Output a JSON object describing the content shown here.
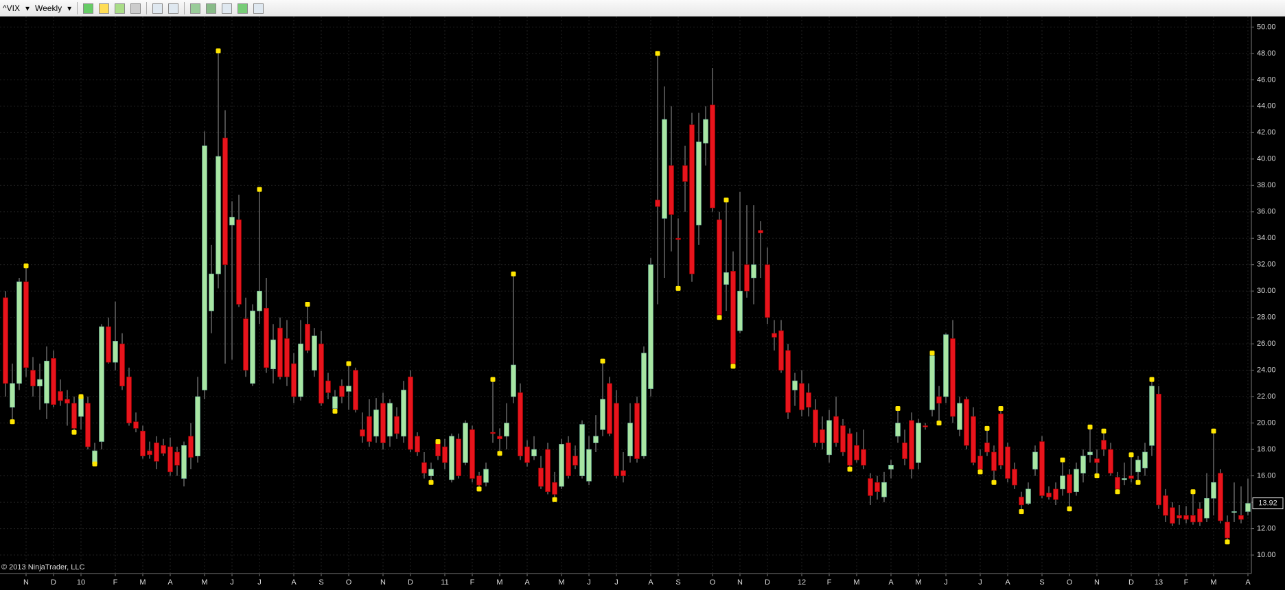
{
  "toolbar": {
    "symbol": "^VIX",
    "interval": "Weekly"
  },
  "chart_data": {
    "type": "candlestick",
    "copyright": "© 2013 NinjaTrader, LLC",
    "categories": [
      null,
      null,
      null,
      "N",
      null,
      null,
      null,
      "D",
      null,
      null,
      null,
      "10",
      null,
      null,
      null,
      null,
      "F",
      null,
      null,
      null,
      "M",
      null,
      null,
      null,
      "A",
      null,
      null,
      null,
      null,
      "M",
      null,
      null,
      null,
      "J",
      null,
      null,
      null,
      "J",
      null,
      null,
      null,
      null,
      "A",
      null,
      null,
      null,
      "S",
      null,
      null,
      null,
      "O",
      null,
      null,
      null,
      null,
      "N",
      null,
      null,
      null,
      "D",
      null,
      null,
      null,
      null,
      "11",
      null,
      null,
      null,
      "F",
      null,
      null,
      null,
      "M",
      null,
      null,
      null,
      "A",
      null,
      null,
      null,
      null,
      "M",
      null,
      null,
      null,
      "J",
      null,
      null,
      null,
      "J",
      null,
      null,
      null,
      null,
      "A",
      null,
      null,
      null,
      "S",
      null,
      null,
      null,
      null,
      "O",
      null,
      null,
      null,
      "N",
      null,
      null,
      null,
      "D",
      null,
      null,
      null,
      null,
      "12",
      null,
      null,
      null,
      "F",
      null,
      null,
      null,
      "M",
      null,
      null,
      null,
      null,
      "A",
      null,
      null,
      null,
      "M",
      null,
      null,
      null,
      "J",
      null,
      null,
      null,
      null,
      "J",
      null,
      null,
      null,
      "A",
      null,
      null,
      null,
      null,
      "S",
      null,
      null,
      null,
      "O",
      null,
      null,
      null,
      "N",
      null,
      null,
      null,
      null,
      "D",
      null,
      null,
      null,
      "13",
      null,
      null,
      null,
      "F",
      null,
      null,
      null,
      "M",
      null,
      null,
      null,
      null,
      "A"
    ],
    "open": [
      29.5,
      21.2,
      23.0,
      30.7,
      24.0,
      22.8,
      21.5,
      24.9,
      22.4,
      21.8,
      21.5,
      20.5,
      21.5,
      16.9,
      18.6,
      27.3,
      24.6,
      26.0,
      23.5,
      20.1,
      19.4,
      17.9,
      18.5,
      18.3,
      18.2,
      17.8,
      15.8,
      19.0,
      17.5,
      22.5,
      28.5,
      31.3,
      41.6,
      35.0,
      35.4,
      27.9,
      23.0,
      28.5,
      28.7,
      24.1,
      27.2,
      26.4,
      24.5,
      22.0,
      27.5,
      24.0,
      26.0,
      23.2,
      21.1,
      22.8,
      22.4,
      24.0,
      19.5,
      20.5,
      19.0,
      21.5,
      19.0,
      20.5,
      19.0,
      23.5,
      19.0,
      17.0,
      16.0,
      18.5,
      18.2,
      15.7,
      18.8,
      17.0,
      19.5,
      16.0,
      15.5,
      19.3,
      19.0,
      19.0,
      22.0,
      22.3,
      18.2,
      17.5,
      16.6,
      18.0,
      15.5,
      15.2,
      18.5,
      17.5,
      16.0,
      15.6,
      18.5,
      19.5,
      23.0,
      21.5,
      16.4,
      17.5,
      21.5,
      17.5,
      22.6,
      36.9,
      35.5,
      39.5,
      34.0,
      39.5,
      42.6,
      35.0,
      41.2,
      44.1,
      35.4,
      30.5,
      31.5,
      27.0,
      32.0,
      31.0,
      34.6,
      32.0,
      26.8,
      27.0,
      25.5,
      22.5,
      23.0,
      22.3,
      21.0,
      19.5,
      17.6,
      20.5,
      19.8,
      19.2,
      18.3,
      18.0,
      15.8,
      15.5,
      14.4,
      16.5,
      19.0,
      18.5,
      20.2,
      17.0,
      19.8,
      21.0,
      22.0,
      22.0,
      26.4,
      19.5,
      21.8,
      20.5,
      17.5,
      18.5,
      17.8,
      20.7,
      18.2,
      16.5,
      14.4,
      13.9,
      16.5,
      18.6,
      14.7,
      15.0,
      15.0,
      16.1,
      14.8,
      16.2,
      17.6,
      17.3,
      18.7,
      18.0,
      15.9,
      15.7,
      16.0,
      16.3,
      16.6,
      18.3,
      22.2,
      14.5,
      13.6,
      13.0,
      13.0,
      13.0,
      13.5,
      12.8,
      14.3,
      16.2,
      12.5,
      13.3,
      13.0,
      13.3
    ],
    "high": [
      30.0,
      24.5,
      31.0,
      31.9,
      25.0,
      24.5,
      25.8,
      25.5,
      23.3,
      22.5,
      22.0,
      22.2,
      22.0,
      18.5,
      27.5,
      28.0,
      29.2,
      26.8,
      24.2,
      20.8,
      19.8,
      18.6,
      19.0,
      18.8,
      18.9,
      18.2,
      18.6,
      20.0,
      23.5,
      42.1,
      33.5,
      48.2,
      43.7,
      36.8,
      37.3,
      29.5,
      29.0,
      37.7,
      31.0,
      27.5,
      28.0,
      27.8,
      25.3,
      27.8,
      29.0,
      27.2,
      27.0,
      23.8,
      22.5,
      23.3,
      24.5,
      24.2,
      20.8,
      21.8,
      21.9,
      22.3,
      21.8,
      21.2,
      23.2,
      24.0,
      19.3,
      17.8,
      17.0,
      18.6,
      18.8,
      19.2,
      19.2,
      20.2,
      19.8,
      16.3,
      17.0,
      23.3,
      19.6,
      21.5,
      31.3,
      23.0,
      18.7,
      19.0,
      17.5,
      18.5,
      16.3,
      18.8,
      19.0,
      18.3,
      20.2,
      19.0,
      20.6,
      24.7,
      23.5,
      22.5,
      17.8,
      21.5,
      22.0,
      25.8,
      32.5,
      48.0,
      45.5,
      44.0,
      35.5,
      41.0,
      43.5,
      43.5,
      44.0,
      46.9,
      36.0,
      36.9,
      33.0,
      37.5,
      36.5,
      36.5,
      35.3,
      33.3,
      27.8,
      27.8,
      26.0,
      23.8,
      24.0,
      23.0,
      21.8,
      20.5,
      21.0,
      22.0,
      20.3,
      19.6,
      19.3,
      19.5,
      16.2,
      16.0,
      16.3,
      17.2,
      21.1,
      19.5,
      20.8,
      20.3,
      20.0,
      25.3,
      22.8,
      26.8,
      27.8,
      22.0,
      22.0,
      21.2,
      18.0,
      19.6,
      18.3,
      21.1,
      18.5,
      17.0,
      14.8,
      15.5,
      18.3,
      19.0,
      15.2,
      15.5,
      17.2,
      16.5,
      17.0,
      18.0,
      19.7,
      18.0,
      19.4,
      18.5,
      16.3,
      17.0,
      17.6,
      17.5,
      18.5,
      23.3,
      22.8,
      15.0,
      14.0,
      13.8,
      13.7,
      14.8,
      14.0,
      16.2,
      19.4,
      16.5,
      13.0,
      15.5,
      15.2,
      15.8
    ],
    "low": [
      22.0,
      20.1,
      22.5,
      23.5,
      22.0,
      21.0,
      20.3,
      21.2,
      21.3,
      19.8,
      19.3,
      19.5,
      18.0,
      16.9,
      18.0,
      24.5,
      24.0,
      22.5,
      19.8,
      19.3,
      17.3,
      17.3,
      16.5,
      17.5,
      16.0,
      16.0,
      15.2,
      16.5,
      17.0,
      21.8,
      26.8,
      30.2,
      24.5,
      24.8,
      28.8,
      23.5,
      22.8,
      27.5,
      23.8,
      23.0,
      23.3,
      22.8,
      21.5,
      21.7,
      25.3,
      23.5,
      21.3,
      21.8,
      20.9,
      21.5,
      21.0,
      20.8,
      18.5,
      18.2,
      18.5,
      18.0,
      18.2,
      18.8,
      18.5,
      17.8,
      17.5,
      15.8,
      15.5,
      17.2,
      16.5,
      15.5,
      15.8,
      16.8,
      15.5,
      15.0,
      15.2,
      18.5,
      17.7,
      18.0,
      21.5,
      17.2,
      16.7,
      17.2,
      15.0,
      14.6,
      14.2,
      15.0,
      15.8,
      16.5,
      15.8,
      15.3,
      17.8,
      19.0,
      19.0,
      15.8,
      15.5,
      17.0,
      17.0,
      17.3,
      22.0,
      29.0,
      31.0,
      33.0,
      30.2,
      36.0,
      30.7,
      33.5,
      39.5,
      36.0,
      28.0,
      28.5,
      24.3,
      26.8,
      29.5,
      29.0,
      31.0,
      27.5,
      25.5,
      23.8,
      20.3,
      21.3,
      20.5,
      20.5,
      18.2,
      18.0,
      17.0,
      18.2,
      17.5,
      16.5,
      17.0,
      16.5,
      13.8,
      14.2,
      14.0,
      15.8,
      18.5,
      16.8,
      15.8,
      16.5,
      19.5,
      20.5,
      20.0,
      21.5,
      20.0,
      19.0,
      18.0,
      16.8,
      16.3,
      17.5,
      15.5,
      16.5,
      15.5,
      15.0,
      13.3,
      13.8,
      16.0,
      14.3,
      14.2,
      13.8,
      14.5,
      13.5,
      14.5,
      15.5,
      17.0,
      16.0,
      17.5,
      16.0,
      14.8,
      15.3,
      15.5,
      15.5,
      16.0,
      17.5,
      13.5,
      12.5,
      12.2,
      12.3,
      12.4,
      12.3,
      12.2,
      12.5,
      13.0,
      12.4,
      11.0,
      12.5,
      12.4,
      13.0
    ],
    "close": [
      23.0,
      23.0,
      30.7,
      24.2,
      22.8,
      23.3,
      24.7,
      21.4,
      21.7,
      21.5,
      19.6,
      22.0,
      18.2,
      17.9,
      27.3,
      24.6,
      26.2,
      22.8,
      20.0,
      19.6,
      17.5,
      17.6,
      17.1,
      17.7,
      16.3,
      16.8,
      18.3,
      17.4,
      22.0,
      41.0,
      31.3,
      40.2,
      32.0,
      35.6,
      29.0,
      24.0,
      28.5,
      30.0,
      24.2,
      26.3,
      23.5,
      23.5,
      22.0,
      26.0,
      25.5,
      26.6,
      21.5,
      22.3,
      22.0,
      22.0,
      22.8,
      21.0,
      19.0,
      18.6,
      21.0,
      18.5,
      21.5,
      19.2,
      22.5,
      18.0,
      17.8,
      16.2,
      16.5,
      17.5,
      17.0,
      19.0,
      16.0,
      20.0,
      15.8,
      15.3,
      16.5,
      19.2,
      18.8,
      20.0,
      24.4,
      17.5,
      17.0,
      18.0,
      15.2,
      14.8,
      14.6,
      18.4,
      16.0,
      16.8,
      19.9,
      18.0,
      19.0,
      21.8,
      19.2,
      16.0,
      16.0,
      20.0,
      17.3,
      25.3,
      32.0,
      36.4,
      43.0,
      35.8,
      33.9,
      38.3,
      31.3,
      41.3,
      43.0,
      36.3,
      28.2,
      31.4,
      24.5,
      30.0,
      30.0,
      32.0,
      34.4,
      28.0,
      26.5,
      24.0,
      20.8,
      23.2,
      21.0,
      21.2,
      18.5,
      18.5,
      20.2,
      18.5,
      17.8,
      16.8,
      17.2,
      16.8,
      14.5,
      14.8,
      15.5,
      16.8,
      20.0,
      17.3,
      16.5,
      20.0,
      19.7,
      25.1,
      21.5,
      26.7,
      20.5,
      21.5,
      18.3,
      17.0,
      16.5,
      17.8,
      16.4,
      16.8,
      15.8,
      15.3,
      13.8,
      15.0,
      17.8,
      14.5,
      14.4,
      14.2,
      16.0,
      14.7,
      16.5,
      17.5,
      17.8,
      17.0,
      18.0,
      16.2,
      15.0,
      15.8,
      15.8,
      17.2,
      17.8,
      22.8,
      13.8,
      13.0,
      12.4,
      12.8,
      12.7,
      12.5,
      12.5,
      14.3,
      15.5,
      12.6,
      11.3,
      13.3,
      12.7,
      13.92
    ],
    "up_color": "#a8e6a3",
    "down_color": "#e8141c",
    "wick_color": "#9a9a9a",
    "markers": {
      "color": "#ffe600",
      "x": [
        1,
        3,
        10,
        11,
        13,
        31,
        37,
        44,
        48,
        50,
        62,
        63,
        69,
        71,
        72,
        74,
        80,
        87,
        95,
        98,
        104,
        105,
        106,
        123,
        130,
        135,
        136,
        142,
        143,
        144,
        145,
        148,
        154,
        155,
        158,
        159,
        160,
        162,
        164,
        165,
        167,
        173,
        176,
        178
      ],
      "values": [
        20.1,
        31.9,
        19.3,
        22.0,
        16.9,
        48.2,
        37.7,
        29.0,
        20.9,
        24.5,
        15.5,
        18.6,
        15.0,
        23.3,
        17.7,
        31.3,
        14.2,
        24.7,
        48.0,
        30.2,
        28.0,
        36.9,
        24.3,
        16.5,
        21.1,
        25.3,
        20.0,
        16.3,
        19.6,
        15.5,
        21.1,
        13.3,
        17.2,
        13.5,
        19.7,
        16.0,
        19.4,
        14.8,
        17.6,
        15.5,
        23.3,
        14.8,
        19.4,
        11.0
      ]
    },
    "ylim": [
      8.6,
      50.8
    ],
    "yticks": [
      {
        "value": 10,
        "label": "10.00"
      },
      {
        "value": 12,
        "label": "12.00"
      },
      {
        "value": 14,
        "label": "14.00"
      },
      {
        "value": 16,
        "label": "16.00"
      },
      {
        "value": 18,
        "label": "18.00"
      },
      {
        "value": 20,
        "label": "20.00"
      },
      {
        "value": 22,
        "label": "22.00"
      },
      {
        "value": 24,
        "label": "24.00"
      },
      {
        "value": 26,
        "label": "26.00"
      },
      {
        "value": 28,
        "label": "28.00"
      },
      {
        "value": 30,
        "label": "30.00"
      },
      {
        "value": 32,
        "label": "32.00"
      },
      {
        "value": 34,
        "label": "34.00"
      },
      {
        "value": 36,
        "label": "36.00"
      },
      {
        "value": 38,
        "label": "38.00"
      },
      {
        "value": 40,
        "label": "40.00"
      },
      {
        "value": 42,
        "label": "42.00"
      },
      {
        "value": 44,
        "label": "44.00"
      },
      {
        "value": 46,
        "label": "46.00"
      },
      {
        "value": 48,
        "label": "48.00"
      },
      {
        "value": 50,
        "label": "50.00"
      }
    ],
    "grid": true
  }
}
